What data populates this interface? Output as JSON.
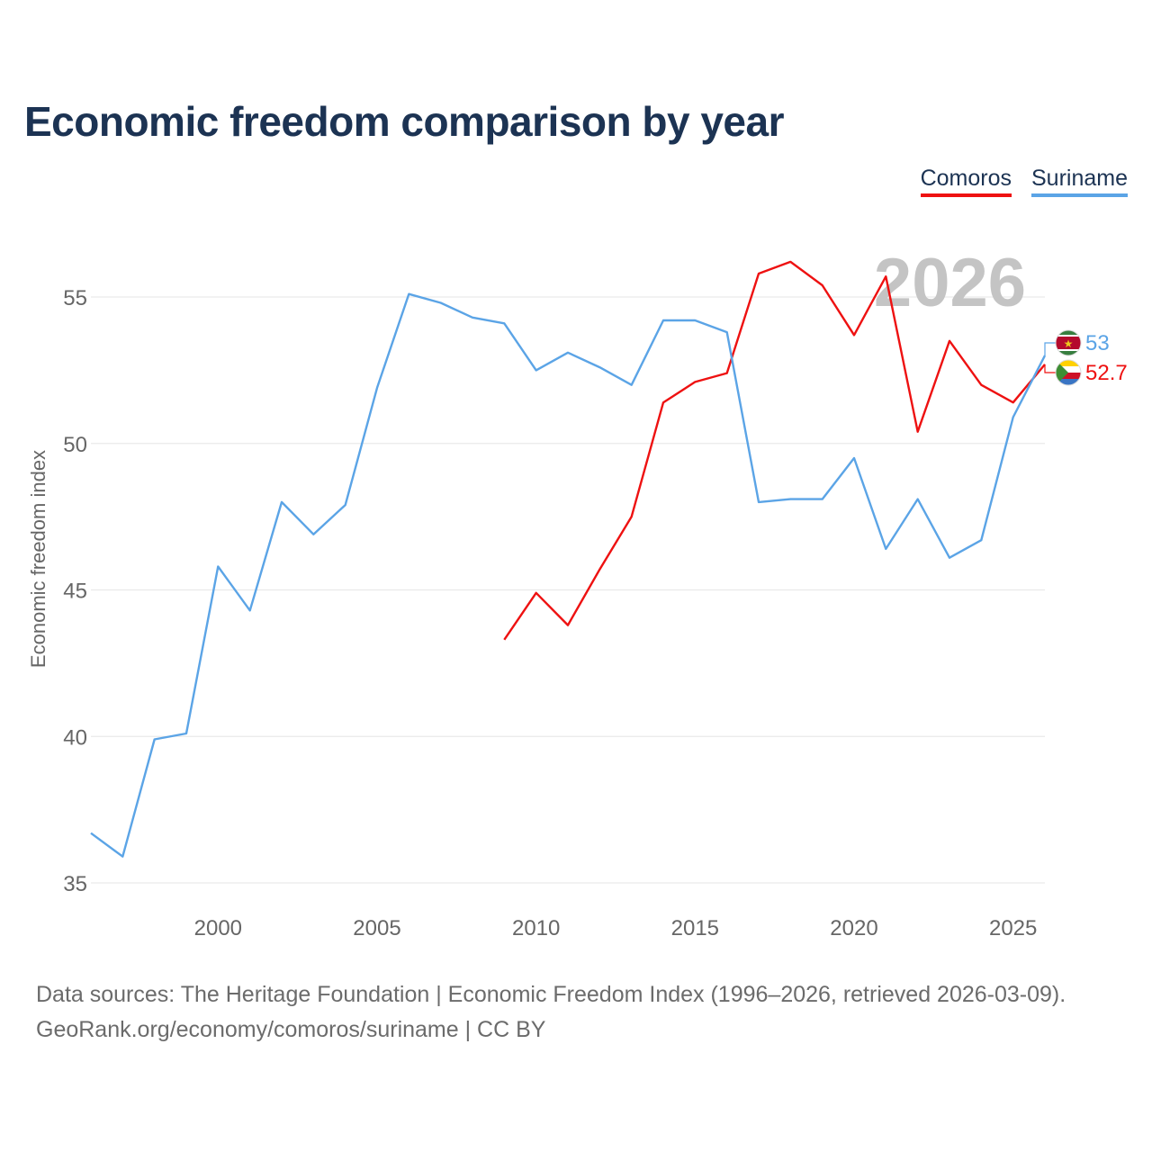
{
  "title": "Economic freedom comparison by year",
  "legend": [
    {
      "label": "Comoros",
      "color": "#ee1111"
    },
    {
      "label": "Suriname",
      "color": "#5ba4e6"
    }
  ],
  "footer": {
    "line1": "Data sources: The Heritage Foundation | Economic Freedom Index (1996–2026, retrieved 2026-03-09).",
    "line2": "GeoRank.org/economy/comoros/suriname | CC BY"
  },
  "chart_data": {
    "type": "line",
    "title": "Economic freedom comparison by year",
    "xlabel": "",
    "ylabel": "Economic freedom index",
    "year_watermark": "2026",
    "xlim": [
      1996,
      2026
    ],
    "ylim": [
      34,
      58
    ],
    "x_ticks": [
      2000,
      2005,
      2010,
      2015,
      2020,
      2025
    ],
    "y_ticks": [
      35,
      40,
      45,
      50,
      55
    ],
    "grid": true,
    "series": [
      {
        "name": "Comoros",
        "color": "#ee1111",
        "end_label": "52.7",
        "x": [
          2009,
          2010,
          2011,
          2012,
          2013,
          2014,
          2015,
          2016,
          2017,
          2018,
          2019,
          2020,
          2021,
          2022,
          2023,
          2024,
          2025,
          2026
        ],
        "values": [
          43.3,
          44.9,
          43.8,
          45.7,
          47.5,
          51.4,
          52.1,
          52.4,
          55.8,
          56.2,
          55.4,
          53.7,
          55.7,
          50.4,
          53.5,
          52.0,
          51.4,
          52.7
        ]
      },
      {
        "name": "Suriname",
        "color": "#5ba4e6",
        "end_label": "53",
        "x": [
          1996,
          1997,
          1998,
          1999,
          2000,
          2001,
          2002,
          2003,
          2004,
          2005,
          2006,
          2007,
          2008,
          2009,
          2010,
          2011,
          2012,
          2013,
          2014,
          2015,
          2016,
          2017,
          2018,
          2019,
          2020,
          2021,
          2022,
          2023,
          2024,
          2025,
          2026
        ],
        "values": [
          36.7,
          35.9,
          39.9,
          40.1,
          45.8,
          44.3,
          48.0,
          46.9,
          47.9,
          51.9,
          55.1,
          54.8,
          54.3,
          54.1,
          52.5,
          53.1,
          52.6,
          52.0,
          54.2,
          54.2,
          53.8,
          48.0,
          48.1,
          48.1,
          49.5,
          46.4,
          48.1,
          46.1,
          46.7,
          50.9,
          53.0
        ]
      }
    ]
  }
}
